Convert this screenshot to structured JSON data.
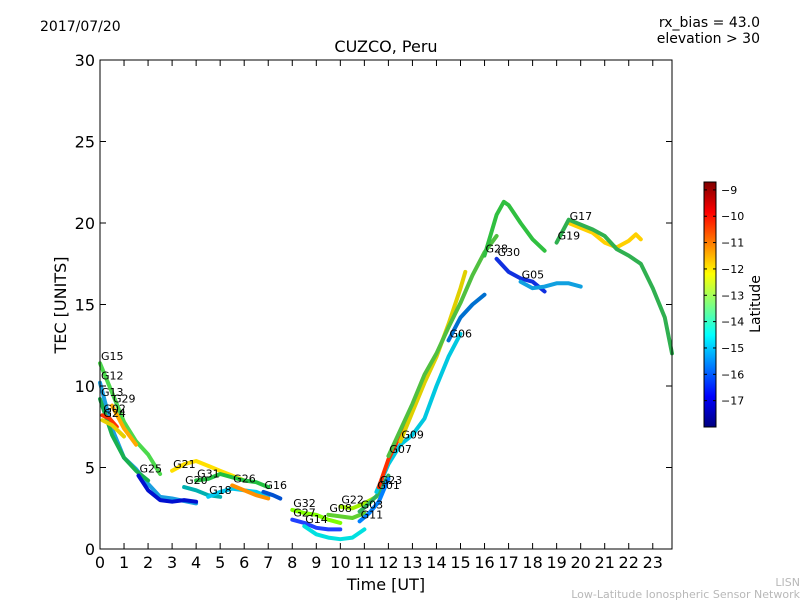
{
  "header": {
    "date": "2017/07/20",
    "rx_bias": "rx_bias = 43.0",
    "elevation": "elevation > 30"
  },
  "credit": {
    "short": "LISN",
    "full": "Low-Latitude Ionospheric Sensor Network"
  },
  "chart_data": {
    "type": "line",
    "title": "CUZCO, Peru",
    "xlabel": "Time [UT]",
    "ylabel": "TEC [UNITS]",
    "xlim": [
      0,
      23.8
    ],
    "ylim": [
      0,
      30
    ],
    "xticks": [
      0,
      1,
      2,
      3,
      4,
      5,
      6,
      7,
      8,
      9,
      10,
      11,
      12,
      13,
      14,
      15,
      16,
      17,
      18,
      19,
      20,
      21,
      22,
      23
    ],
    "yticks": [
      0,
      5,
      10,
      15,
      20,
      25,
      30
    ],
    "grid": false,
    "colorbar": {
      "label": "Latitude",
      "range": [
        -18,
        -8.7
      ],
      "ticks": [
        -9,
        -10,
        -11,
        -12,
        -13,
        -14,
        -15,
        -16,
        -17
      ],
      "tick_labels": [
        "−9",
        "−10",
        "−11",
        "−12",
        "−13",
        "−14",
        "−15",
        "−16",
        "−17"
      ],
      "colormap": [
        "#00007f",
        "#0000ff",
        "#007fff",
        "#00ffff",
        "#7fff7f",
        "#ffff00",
        "#ff7f00",
        "#ff0000",
        "#7f0000"
      ]
    },
    "series": [
      {
        "name": "G15",
        "color": "#4cd94c",
        "points": [
          [
            0,
            11.4
          ],
          [
            0.5,
            9.6
          ],
          [
            1,
            7.8
          ],
          [
            1.5,
            6.6
          ],
          [
            2,
            5.8
          ],
          [
            2.5,
            4.6
          ]
        ]
      },
      {
        "name": "G12",
        "color": "#1a9fe0",
        "points": [
          [
            0,
            10.2
          ],
          [
            0.5,
            7.4
          ],
          [
            1,
            5.6
          ],
          [
            1.5,
            4.9
          ],
          [
            2,
            4.0
          ],
          [
            2.5,
            3.2
          ],
          [
            3,
            3.1
          ],
          [
            4,
            2.8
          ]
        ]
      },
      {
        "name": "G13",
        "color": "#18b050",
        "points": [
          [
            0,
            9.2
          ],
          [
            0.5,
            7.0
          ],
          [
            1,
            5.6
          ],
          [
            1.5,
            4.8
          ],
          [
            2,
            4.2
          ]
        ]
      },
      {
        "name": "G29",
        "color": "#ffaa00",
        "points": [
          [
            0.5,
            8.8
          ],
          [
            1,
            7.4
          ],
          [
            1.5,
            6.4
          ]
        ]
      },
      {
        "name": "G02",
        "color": "#ff3300",
        "points": [
          [
            0.1,
            8.2
          ],
          [
            0.4,
            8.0
          ],
          [
            0.7,
            7.5
          ]
        ]
      },
      {
        "name": "G24",
        "color": "#e8d000",
        "points": [
          [
            0.1,
            7.9
          ],
          [
            0.5,
            7.6
          ],
          [
            1,
            6.9
          ]
        ]
      },
      {
        "name": "G25",
        "color": "#0010d0",
        "points": [
          [
            1.6,
            4.5
          ],
          [
            2,
            3.6
          ],
          [
            2.5,
            3.0
          ],
          [
            3,
            2.9
          ],
          [
            3.5,
            3.0
          ],
          [
            4,
            2.9
          ]
        ]
      },
      {
        "name": "G21",
        "color": "#ffe000",
        "points": [
          [
            3,
            4.8
          ],
          [
            3.5,
            5.2
          ],
          [
            4,
            5.4
          ],
          [
            4.5,
            5.1
          ],
          [
            5,
            4.8
          ],
          [
            5.5,
            4.5
          ],
          [
            6,
            4.2
          ]
        ]
      },
      {
        "name": "G31",
        "color": "#20c040",
        "points": [
          [
            4,
            4.2
          ],
          [
            4.5,
            4.3
          ],
          [
            5,
            4.6
          ],
          [
            5.5,
            4.4
          ],
          [
            6,
            4.2
          ],
          [
            6.5,
            4.1
          ],
          [
            7,
            3.8
          ]
        ]
      },
      {
        "name": "G20",
        "color": "#00b0b0",
        "points": [
          [
            3.5,
            3.8
          ],
          [
            4,
            3.6
          ],
          [
            4.5,
            3.3
          ],
          [
            5,
            3.2
          ]
        ]
      },
      {
        "name": "G18",
        "color": "#00c8f0",
        "points": [
          [
            4.5,
            3.2
          ],
          [
            5,
            3.5
          ],
          [
            5.5,
            3.7
          ],
          [
            6,
            3.6
          ],
          [
            6.5,
            3.5
          ],
          [
            7,
            3.2
          ]
        ]
      },
      {
        "name": "G26",
        "color": "#ff9000",
        "points": [
          [
            5.5,
            3.9
          ],
          [
            6,
            3.6
          ],
          [
            6.5,
            3.3
          ],
          [
            7,
            3.1
          ]
        ]
      },
      {
        "name": "G16",
        "color": "#0050d0",
        "points": [
          [
            6.8,
            3.5
          ],
          [
            7.2,
            3.3
          ],
          [
            7.5,
            3.1
          ]
        ]
      },
      {
        "name": "G32",
        "color": "#7fff00",
        "points": [
          [
            8,
            2.4
          ],
          [
            8.5,
            2.2
          ],
          [
            9,
            2.1
          ],
          [
            9.5,
            1.8
          ],
          [
            10,
            1.6
          ]
        ]
      },
      {
        "name": "G27",
        "color": "#2040ff",
        "points": [
          [
            8,
            1.8
          ],
          [
            8.5,
            1.6
          ],
          [
            9,
            1.3
          ],
          [
            9.5,
            1.2
          ],
          [
            10,
            1.2
          ]
        ]
      },
      {
        "name": "G14",
        "color": "#00e0e0",
        "points": [
          [
            8.5,
            1.4
          ],
          [
            9,
            0.9
          ],
          [
            9.5,
            0.7
          ],
          [
            10,
            0.6
          ],
          [
            10.5,
            0.7
          ],
          [
            11,
            1.2
          ]
        ]
      },
      {
        "name": "G08",
        "color": "#60d030",
        "points": [
          [
            9.5,
            2.1
          ],
          [
            10,
            2.0
          ],
          [
            10.5,
            1.9
          ],
          [
            11,
            2.2
          ]
        ]
      },
      {
        "name": "G22",
        "color": "#a0f000",
        "points": [
          [
            10,
            2.6
          ],
          [
            10.5,
            2.5
          ],
          [
            11,
            2.8
          ],
          [
            11.5,
            3.2
          ]
        ]
      },
      {
        "name": "G03",
        "color": "#30b060",
        "points": [
          [
            10.8,
            2.3
          ],
          [
            11.2,
            2.8
          ],
          [
            11.6,
            3.4
          ],
          [
            12,
            4.5
          ]
        ]
      },
      {
        "name": "G11",
        "color": "#0080ff",
        "points": [
          [
            10.8,
            1.7
          ],
          [
            11.2,
            2.2
          ],
          [
            11.6,
            2.9
          ],
          [
            12,
            4.3
          ]
        ]
      },
      {
        "name": "G01",
        "color": "#00c8e0",
        "points": [
          [
            11.5,
            3.5
          ],
          [
            12,
            5.2
          ],
          [
            12.5,
            6.4
          ],
          [
            13,
            7.0
          ],
          [
            13.5,
            8.0
          ],
          [
            14,
            10.0
          ],
          [
            14.5,
            11.8
          ],
          [
            15,
            13.2
          ]
        ]
      },
      {
        "name": "G23",
        "color": "#ff3000",
        "points": [
          [
            11.6,
            3.8
          ],
          [
            12,
            5.5
          ],
          [
            12.5,
            7.0
          ],
          [
            13,
            8.5
          ]
        ]
      },
      {
        "name": "G09",
        "color": "#e0d000",
        "points": [
          [
            12.5,
            6.6
          ],
          [
            13,
            8.4
          ],
          [
            13.5,
            10.2
          ],
          [
            14,
            11.8
          ],
          [
            14.5,
            13.8
          ],
          [
            15,
            16.0
          ],
          [
            15.2,
            17.0
          ]
        ]
      },
      {
        "name": "G07",
        "color": "#50c040",
        "points": [
          [
            12,
            5.7
          ],
          [
            12.5,
            7.3
          ],
          [
            13,
            8.9
          ],
          [
            13.5,
            10.7
          ],
          [
            14,
            12.0
          ],
          [
            14.5,
            13.6
          ],
          [
            15,
            15.1
          ],
          [
            15.5,
            16.8
          ],
          [
            16,
            18.2
          ],
          [
            16.5,
            19.2
          ]
        ]
      },
      {
        "name": "G06",
        "color": "#0070d0",
        "points": [
          [
            14.5,
            12.8
          ],
          [
            15,
            14.2
          ],
          [
            15.5,
            15.0
          ],
          [
            16,
            15.6
          ]
        ]
      },
      {
        "name": "G30",
        "color": "#1030e0",
        "points": [
          [
            16.5,
            17.8
          ],
          [
            17,
            17.0
          ],
          [
            17.5,
            16.6
          ],
          [
            18,
            16.4
          ],
          [
            18.5,
            15.8
          ]
        ]
      },
      {
        "name": "G28",
        "color": "#30c040",
        "points": [
          [
            16,
            18.0
          ],
          [
            16.5,
            20.5
          ],
          [
            16.8,
            21.3
          ],
          [
            17,
            21.1
          ],
          [
            17.5,
            20.0
          ],
          [
            18,
            19.0
          ],
          [
            18.5,
            18.3
          ]
        ]
      },
      {
        "name": "G05",
        "color": "#10a0e0",
        "points": [
          [
            17.5,
            16.4
          ],
          [
            18,
            16.0
          ],
          [
            18.5,
            16.1
          ],
          [
            19,
            16.3
          ],
          [
            19.5,
            16.3
          ],
          [
            20,
            16.1
          ]
        ]
      },
      {
        "name": "G17",
        "color": "#ffd000",
        "points": [
          [
            19.5,
            20.0
          ],
          [
            20,
            19.7
          ],
          [
            20.5,
            19.4
          ],
          [
            21,
            18.8
          ],
          [
            21.5,
            18.5
          ],
          [
            22,
            18.9
          ],
          [
            22.3,
            19.3
          ],
          [
            22.5,
            19.0
          ]
        ]
      },
      {
        "name": "G19",
        "color": "#30b050",
        "points": [
          [
            19,
            18.8
          ],
          [
            19.5,
            20.2
          ],
          [
            20,
            19.9
          ],
          [
            20.5,
            19.6
          ],
          [
            21,
            19.2
          ],
          [
            21.5,
            18.4
          ],
          [
            22,
            18.0
          ],
          [
            22.5,
            17.5
          ],
          [
            23,
            16.0
          ],
          [
            23.5,
            14.2
          ],
          [
            23.8,
            12.0
          ]
        ]
      }
    ]
  }
}
